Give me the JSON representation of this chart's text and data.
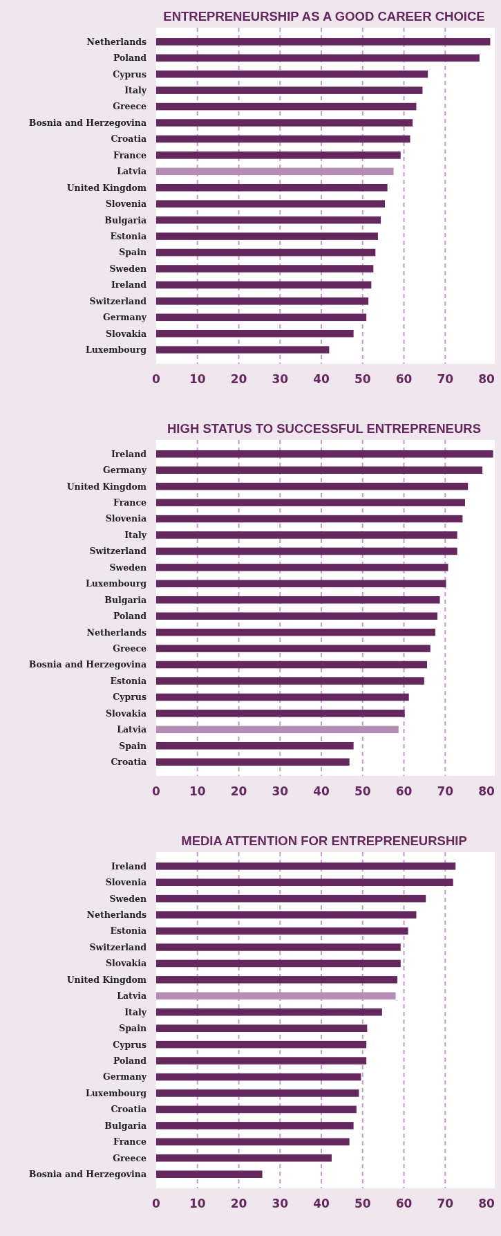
{
  "chart_data": [
    {
      "type": "bar",
      "orientation": "horizontal",
      "title": "ENTREPRENEURSHIP AS A GOOD CAREER CHOICE",
      "categories": [
        "Netherlands",
        "Poland",
        "Cyprus",
        "Italy",
        "Greece",
        "Bosnia and Herzegovina",
        "Croatia",
        "France",
        "Latvia",
        "United Kingdom",
        "Slovenia",
        "Bulgaria",
        "Estonia",
        "Spain",
        "Sweden",
        "Ireland",
        "Switzerland",
        "Germany",
        "Slovakia",
        "Luxembourg"
      ],
      "values": [
        80.9,
        78.3,
        65.8,
        64.5,
        63.0,
        62.1,
        61.5,
        59.2,
        57.5,
        56.0,
        55.4,
        54.4,
        53.7,
        53.1,
        52.6,
        52.1,
        51.4,
        50.9,
        47.8,
        41.9
      ],
      "colors": [
        "#64285f",
        "#64285f",
        "#64285f",
        "#64285f",
        "#64285f",
        "#64285f",
        "#64285f",
        "#64285f",
        "#b48cb4",
        "#64285f",
        "#64285f",
        "#64285f",
        "#64285f",
        "#64285f",
        "#64285f",
        "#64285f",
        "#64285f",
        "#64285f",
        "#64285f",
        "#64285f"
      ],
      "xlim": [
        0,
        82
      ],
      "xticks": [
        0,
        10,
        20,
        30,
        40,
        50,
        60,
        70,
        80
      ],
      "grid": "x"
    },
    {
      "type": "bar",
      "orientation": "horizontal",
      "title": "HIGH STATUS TO SUCCESSFUL ENTREPRENEURS",
      "categories": [
        "Ireland",
        "Germany",
        "United Kingdom",
        "France",
        "Slovenia",
        "Italy",
        "Switzerland",
        "Sweden",
        "Luxembourg",
        "Bulgaria",
        "Poland",
        "Netherlands",
        "Greece",
        "Bosnia and Herzegovina",
        "Estonia",
        "Cyprus",
        "Slovakia",
        "Latvia",
        "Spain",
        "Croatia"
      ],
      "values": [
        81.6,
        79.0,
        75.5,
        74.8,
        74.2,
        72.9,
        72.9,
        70.7,
        70.2,
        68.7,
        68.1,
        67.6,
        66.4,
        65.6,
        64.9,
        61.2,
        60.2,
        58.7,
        47.8,
        46.8
      ],
      "colors": [
        "#64285f",
        "#64285f",
        "#64285f",
        "#64285f",
        "#64285f",
        "#64285f",
        "#64285f",
        "#64285f",
        "#64285f",
        "#64285f",
        "#64285f",
        "#64285f",
        "#64285f",
        "#64285f",
        "#64285f",
        "#64285f",
        "#64285f",
        "#b48cb4",
        "#64285f",
        "#64285f"
      ],
      "xlim": [
        0,
        82
      ],
      "xticks": [
        0,
        10,
        20,
        30,
        40,
        50,
        60,
        70,
        80
      ],
      "grid": "x"
    },
    {
      "type": "bar",
      "orientation": "horizontal",
      "title": "MEDIA ATTENTION FOR ENTREPRENEURSHIP",
      "categories": [
        "Ireland",
        "Slovenia",
        "Sweden",
        "Netherlands",
        "Estonia",
        "Switzerland",
        "Slovakia",
        "United Kingdom",
        "Latvia",
        "Italy",
        "Spain",
        "Cyprus",
        "Poland",
        "Germany",
        "Luxembourg",
        "Croatia",
        "Bulgaria",
        "France",
        "Greece",
        "Bosnia and Herzegovina"
      ],
      "values": [
        72.5,
        71.9,
        65.3,
        63.0,
        61.0,
        59.2,
        59.2,
        58.4,
        58.0,
        54.7,
        51.1,
        50.9,
        50.9,
        49.6,
        49.1,
        48.5,
        47.8,
        46.8,
        42.5,
        25.7
      ],
      "colors": [
        "#64285f",
        "#64285f",
        "#64285f",
        "#64285f",
        "#64285f",
        "#64285f",
        "#64285f",
        "#64285f",
        "#b48cb4",
        "#64285f",
        "#64285f",
        "#64285f",
        "#64285f",
        "#64285f",
        "#64285f",
        "#64285f",
        "#64285f",
        "#64285f",
        "#64285f",
        "#64285f"
      ],
      "xlim": [
        0,
        82
      ],
      "xticks": [
        0,
        10,
        20,
        30,
        40,
        50,
        60,
        70,
        80
      ],
      "grid": "x"
    }
  ]
}
